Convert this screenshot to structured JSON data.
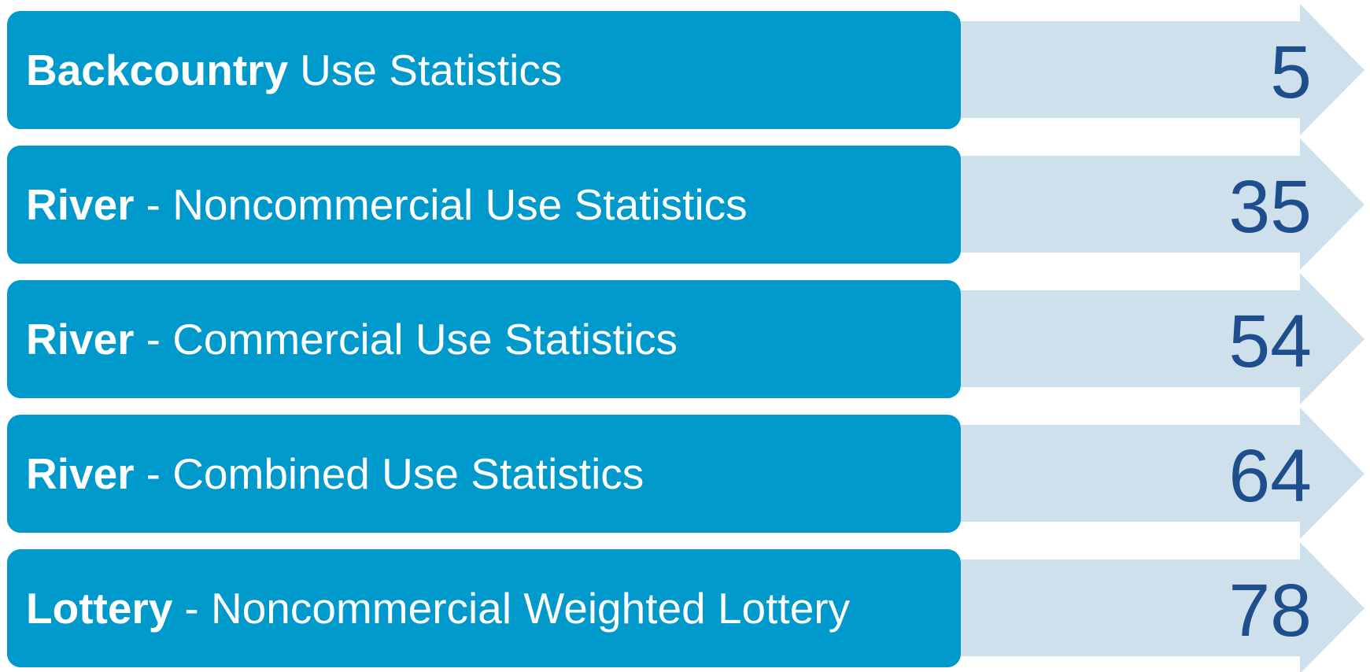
{
  "items": [
    {
      "bold": "Backcountry",
      "text": "Use Statistics",
      "number": 5
    },
    {
      "bold": "River",
      "text": "- Noncommercial Use Statistics",
      "number": 35
    },
    {
      "bold": "River",
      "text": "- Commercial Use Statistics",
      "number": 54
    },
    {
      "bold": "River",
      "text": "- Combined Use Statistics",
      "number": 64
    },
    {
      "bold": "Lottery",
      "text": "- Noncommercial Weighted Lottery",
      "number": 78
    }
  ]
}
